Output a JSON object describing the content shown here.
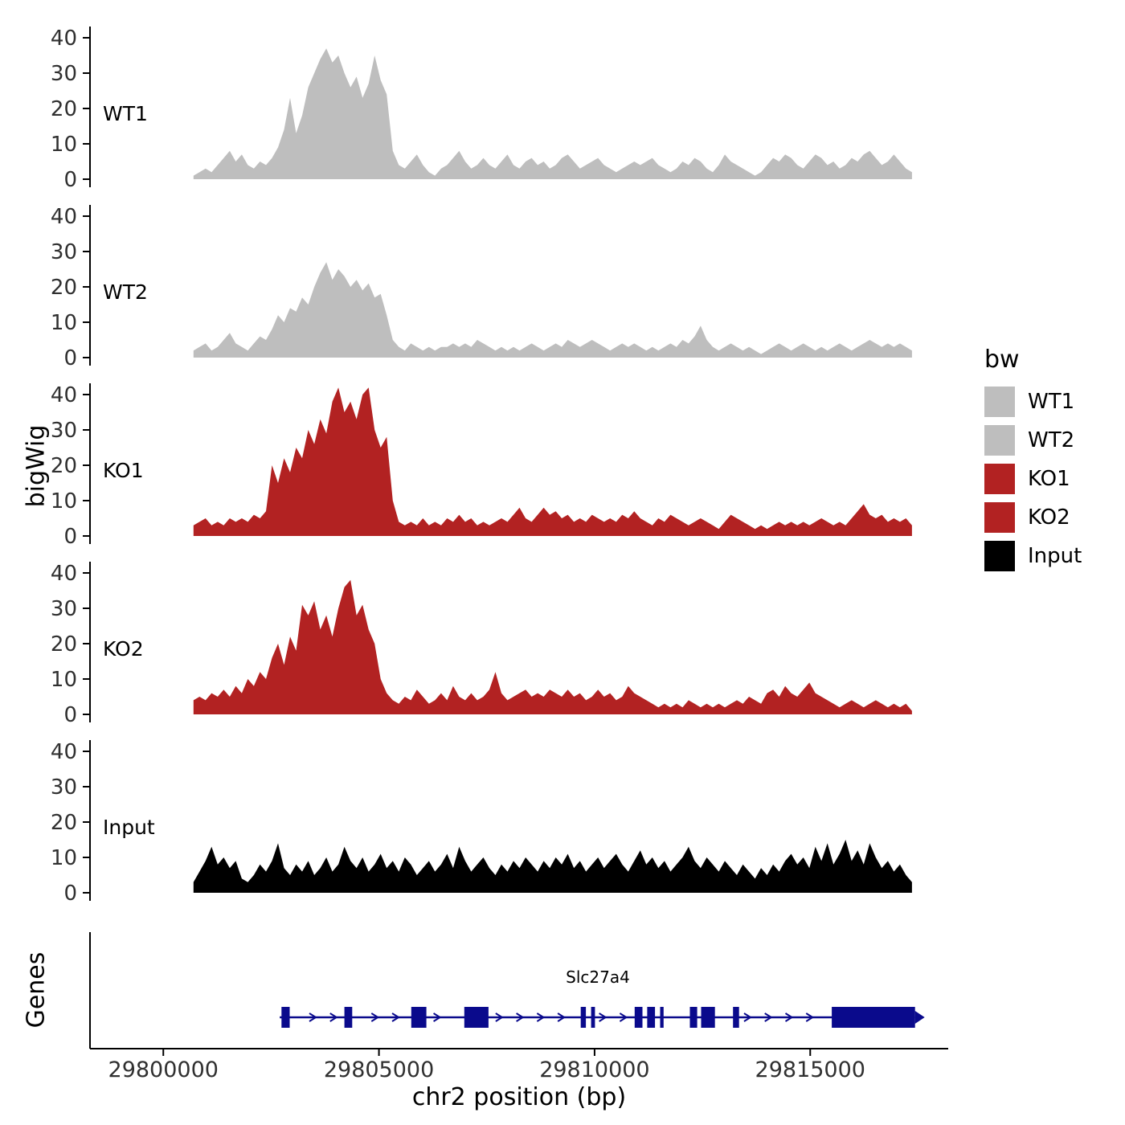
{
  "figure": {
    "background": "#FFFFFF"
  },
  "chart_data": {
    "type": "area",
    "title": "",
    "ylabel": "bigWig",
    "genes_axis_label": "Genes",
    "xlabel": "chr2 position (bp)",
    "x_domain": [
      29798300,
      29818200
    ],
    "x_ticks": [
      29800000,
      29805000,
      29810000,
      29815000
    ],
    "y_ticks": [
      0,
      10,
      20,
      30,
      40
    ],
    "y_max": 45,
    "x_start": 29800700,
    "x_step": 140,
    "tick_label_color": "#303030",
    "panels": [
      {
        "name": "WT1",
        "color": "#BEBEBE",
        "values": [
          1,
          2,
          3,
          2,
          4,
          6,
          8,
          5,
          7,
          4,
          3,
          5,
          4,
          6,
          9,
          14,
          23,
          13,
          18,
          26,
          30,
          34,
          37,
          33,
          35,
          30,
          26,
          29,
          23,
          27,
          35,
          28,
          24,
          8,
          4,
          3,
          5,
          7,
          4,
          2,
          1,
          3,
          4,
          6,
          8,
          5,
          3,
          4,
          6,
          4,
          3,
          5,
          7,
          4,
          3,
          5,
          6,
          4,
          5,
          3,
          4,
          6,
          7,
          5,
          3,
          4,
          5,
          6,
          4,
          3,
          2,
          3,
          4,
          5,
          4,
          5,
          6,
          4,
          3,
          2,
          3,
          5,
          4,
          6,
          5,
          3,
          2,
          4,
          7,
          5,
          4,
          3,
          2,
          1,
          2,
          4,
          6,
          5,
          7,
          6,
          4,
          3,
          5,
          7,
          6,
          4,
          5,
          3,
          4,
          6,
          5,
          7,
          8,
          6,
          4,
          5,
          7,
          5,
          3,
          2
        ]
      },
      {
        "name": "WT2",
        "color": "#BEBEBE",
        "values": [
          2,
          3,
          4,
          2,
          3,
          5,
          7,
          4,
          3,
          2,
          4,
          6,
          5,
          8,
          12,
          10,
          14,
          13,
          17,
          15,
          20,
          24,
          27,
          22,
          25,
          23,
          20,
          22,
          19,
          21,
          17,
          18,
          12,
          5,
          3,
          2,
          4,
          3,
          2,
          3,
          2,
          3,
          3,
          4,
          3,
          4,
          3,
          5,
          4,
          3,
          2,
          3,
          2,
          3,
          2,
          3,
          4,
          3,
          2,
          3,
          4,
          3,
          5,
          4,
          3,
          4,
          5,
          4,
          3,
          2,
          3,
          4,
          3,
          4,
          3,
          2,
          3,
          2,
          3,
          4,
          3,
          5,
          4,
          6,
          9,
          5,
          3,
          2,
          3,
          4,
          3,
          2,
          3,
          2,
          1,
          2,
          3,
          4,
          3,
          2,
          3,
          4,
          3,
          2,
          3,
          2,
          3,
          4,
          3,
          2,
          3,
          4,
          5,
          4,
          3,
          4,
          3,
          4,
          3,
          2
        ]
      },
      {
        "name": "KO1",
        "color": "#B22222",
        "values": [
          3,
          4,
          5,
          3,
          4,
          3,
          5,
          4,
          5,
          4,
          6,
          5,
          7,
          20,
          15,
          22,
          18,
          25,
          22,
          30,
          26,
          33,
          29,
          38,
          42,
          35,
          38,
          33,
          40,
          42,
          30,
          25,
          28,
          10,
          4,
          3,
          4,
          3,
          5,
          3,
          4,
          3,
          5,
          4,
          6,
          4,
          5,
          3,
          4,
          3,
          4,
          5,
          4,
          6,
          8,
          5,
          4,
          6,
          8,
          6,
          7,
          5,
          6,
          4,
          5,
          4,
          6,
          5,
          4,
          5,
          4,
          6,
          5,
          7,
          5,
          4,
          3,
          5,
          4,
          6,
          5,
          4,
          3,
          4,
          5,
          4,
          3,
          2,
          4,
          6,
          5,
          4,
          3,
          2,
          3,
          2,
          3,
          4,
          3,
          4,
          3,
          4,
          3,
          4,
          5,
          4,
          3,
          4,
          3,
          5,
          7,
          9,
          6,
          5,
          6,
          4,
          5,
          4,
          5,
          3
        ]
      },
      {
        "name": "KO2",
        "color": "#B22222",
        "values": [
          4,
          5,
          4,
          6,
          5,
          7,
          5,
          8,
          6,
          10,
          8,
          12,
          10,
          16,
          20,
          14,
          22,
          18,
          31,
          28,
          32,
          24,
          28,
          22,
          30,
          36,
          38,
          28,
          31,
          24,
          20,
          10,
          6,
          4,
          3,
          5,
          4,
          7,
          5,
          3,
          4,
          6,
          4,
          8,
          5,
          4,
          6,
          4,
          5,
          7,
          12,
          6,
          4,
          5,
          6,
          7,
          5,
          6,
          5,
          7,
          6,
          5,
          7,
          5,
          6,
          4,
          5,
          7,
          5,
          6,
          4,
          5,
          8,
          6,
          5,
          4,
          3,
          2,
          3,
          2,
          3,
          2,
          4,
          3,
          2,
          3,
          2,
          3,
          2,
          3,
          4,
          3,
          5,
          4,
          3,
          6,
          7,
          5,
          8,
          6,
          5,
          7,
          9,
          6,
          5,
          4,
          3,
          2,
          3,
          4,
          3,
          2,
          3,
          4,
          3,
          2,
          3,
          2,
          3,
          1
        ]
      },
      {
        "name": "Input",
        "color": "#000000",
        "values": [
          3,
          6,
          9,
          13,
          8,
          10,
          7,
          9,
          4,
          3,
          5,
          8,
          6,
          9,
          14,
          7,
          5,
          8,
          6,
          9,
          5,
          7,
          10,
          6,
          8,
          13,
          9,
          7,
          10,
          6,
          8,
          11,
          7,
          9,
          6,
          10,
          8,
          5,
          7,
          9,
          6,
          8,
          11,
          7,
          13,
          9,
          6,
          8,
          10,
          7,
          5,
          8,
          6,
          9,
          7,
          10,
          8,
          6,
          9,
          7,
          10,
          8,
          11,
          7,
          9,
          6,
          8,
          10,
          7,
          9,
          11,
          8,
          6,
          9,
          12,
          8,
          10,
          7,
          9,
          6,
          8,
          10,
          13,
          9,
          7,
          10,
          8,
          6,
          9,
          7,
          5,
          8,
          6,
          4,
          7,
          5,
          8,
          6,
          9,
          11,
          8,
          10,
          7,
          13,
          9,
          14,
          8,
          11,
          15,
          9,
          12,
          8,
          14,
          10,
          7,
          9,
          6,
          8,
          5,
          3
        ]
      }
    ],
    "gene_track": {
      "gene_name": "Slc27a4",
      "strand": "+",
      "start": 29802700,
      "end": 29817430,
      "color": "#0A0A8C",
      "exons": [
        [
          29802740,
          29802930
        ],
        [
          29804200,
          29804380
        ],
        [
          29805750,
          29806100
        ],
        [
          29806980,
          29807540
        ],
        [
          29809680,
          29809800
        ],
        [
          29809920,
          29810010
        ],
        [
          29810930,
          29811110
        ],
        [
          29811220,
          29811400
        ],
        [
          29811520,
          29811600
        ],
        [
          29812210,
          29812380
        ],
        [
          29812470,
          29812790
        ],
        [
          29813210,
          29813350
        ],
        [
          29815500,
          29817430
        ]
      ]
    },
    "legend": {
      "title": "bw",
      "items": [
        {
          "label": "WT1",
          "color": "#BEBEBE"
        },
        {
          "label": "WT2",
          "color": "#BEBEBE"
        },
        {
          "label": "KO1",
          "color": "#B22222"
        },
        {
          "label": "KO2",
          "color": "#B22222"
        },
        {
          "label": "Input",
          "color": "#000000"
        }
      ]
    }
  }
}
